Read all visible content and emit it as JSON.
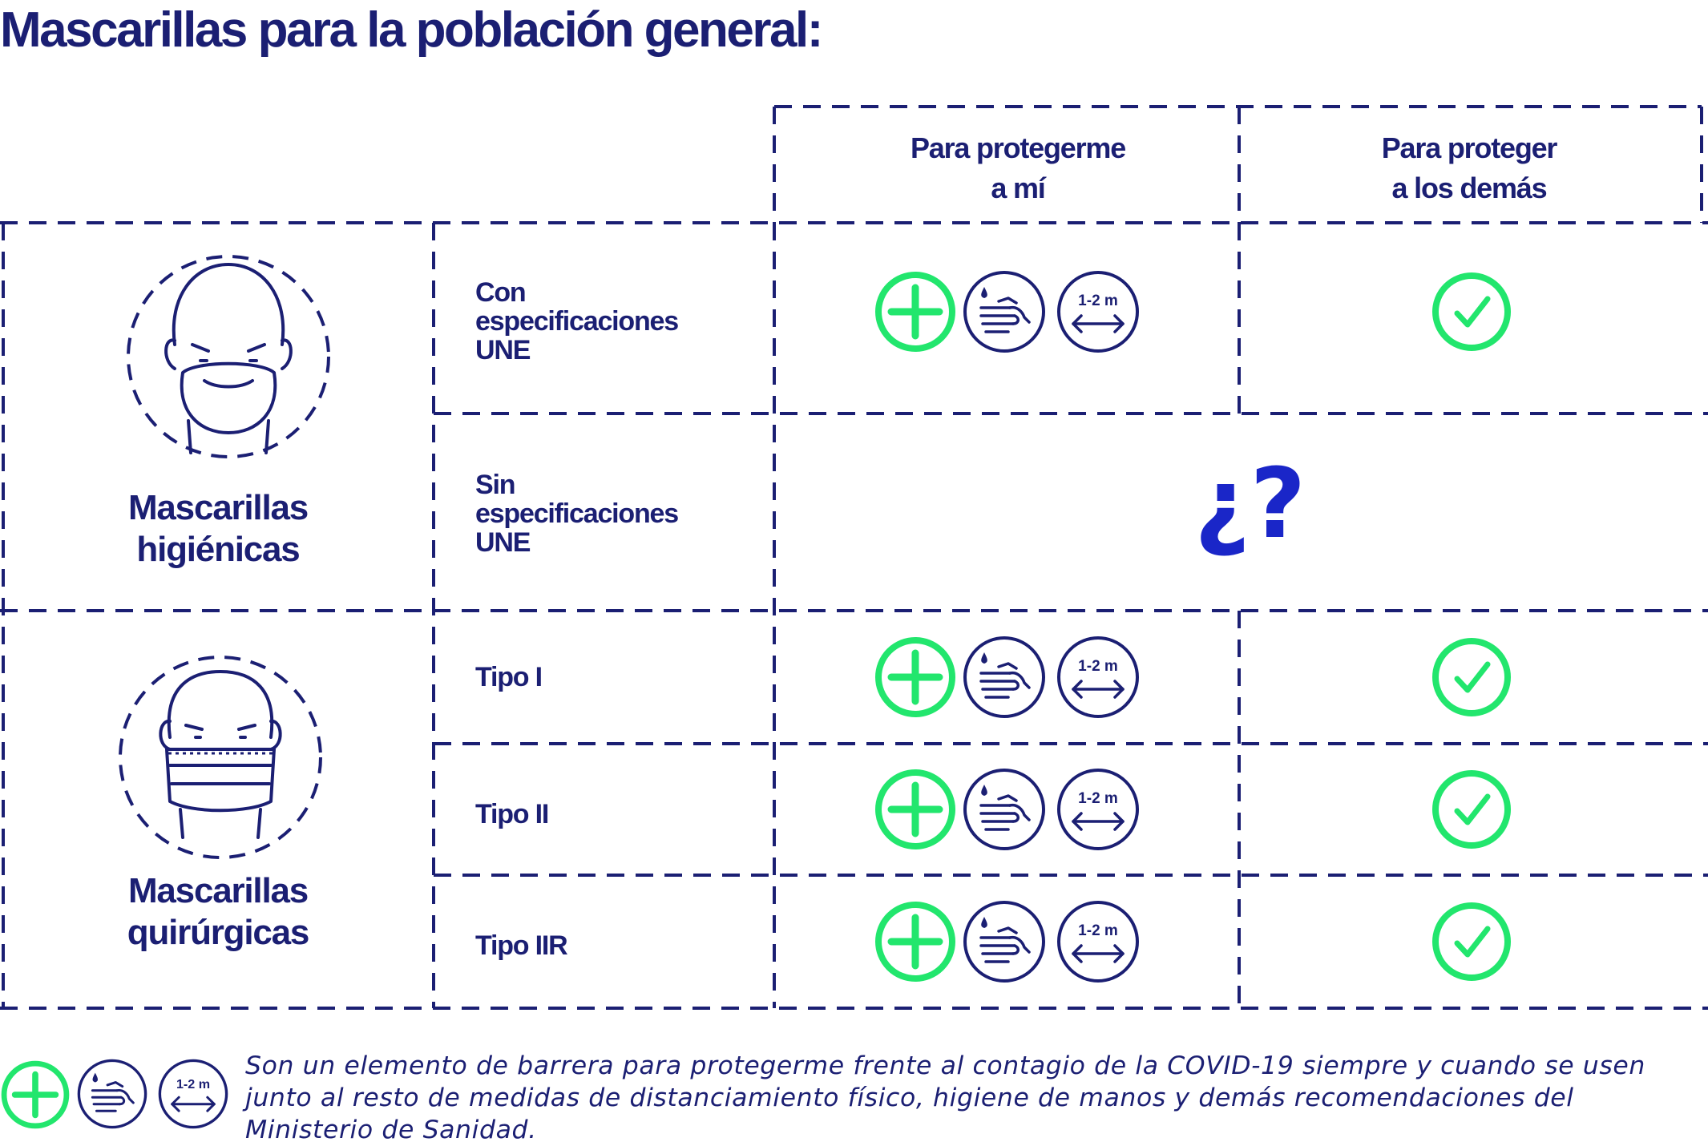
{
  "title": "Mascarillas para la población general:",
  "columns": {
    "protect_me": [
      "Para protegerme",
      "a mí"
    ],
    "protect_others": [
      "Para proteger",
      "a los demás"
    ]
  },
  "groups": {
    "hygienic": [
      "Mascarillas",
      "higiénicas"
    ],
    "surgical": [
      "Mascarillas",
      "quirúrgicas"
    ]
  },
  "rows": {
    "con_une": [
      "Con",
      "especificaciones",
      "UNE"
    ],
    "sin_une": [
      "Sin",
      "especificaciones",
      "UNE"
    ],
    "tipo1": "Tipo I",
    "tipo2": "Tipo II",
    "tipo2r": "Tipo IIR"
  },
  "unknown_mark": "¿?",
  "distance_label": "1-2 m",
  "legend": "Son un elemento de barrera para protegerme frente al contagio de la COVID-19 siempre y cuando se usen junto al resto de medidas de distanciamiento físico, higiene de manos y demás recomendaciones del Ministerio de Sanidad.",
  "icons": {
    "plus": "green-plus-icon",
    "hands": "handwash-icon",
    "distance": "distance-icon",
    "check": "green-check-icon",
    "hygienic_mask": "hygienic-mask-face-icon",
    "surgical_mask": "surgical-mask-face-icon"
  },
  "colors": {
    "navy": "#1b1f73",
    "green": "#22e66d",
    "blue_question": "#1a26c8"
  }
}
